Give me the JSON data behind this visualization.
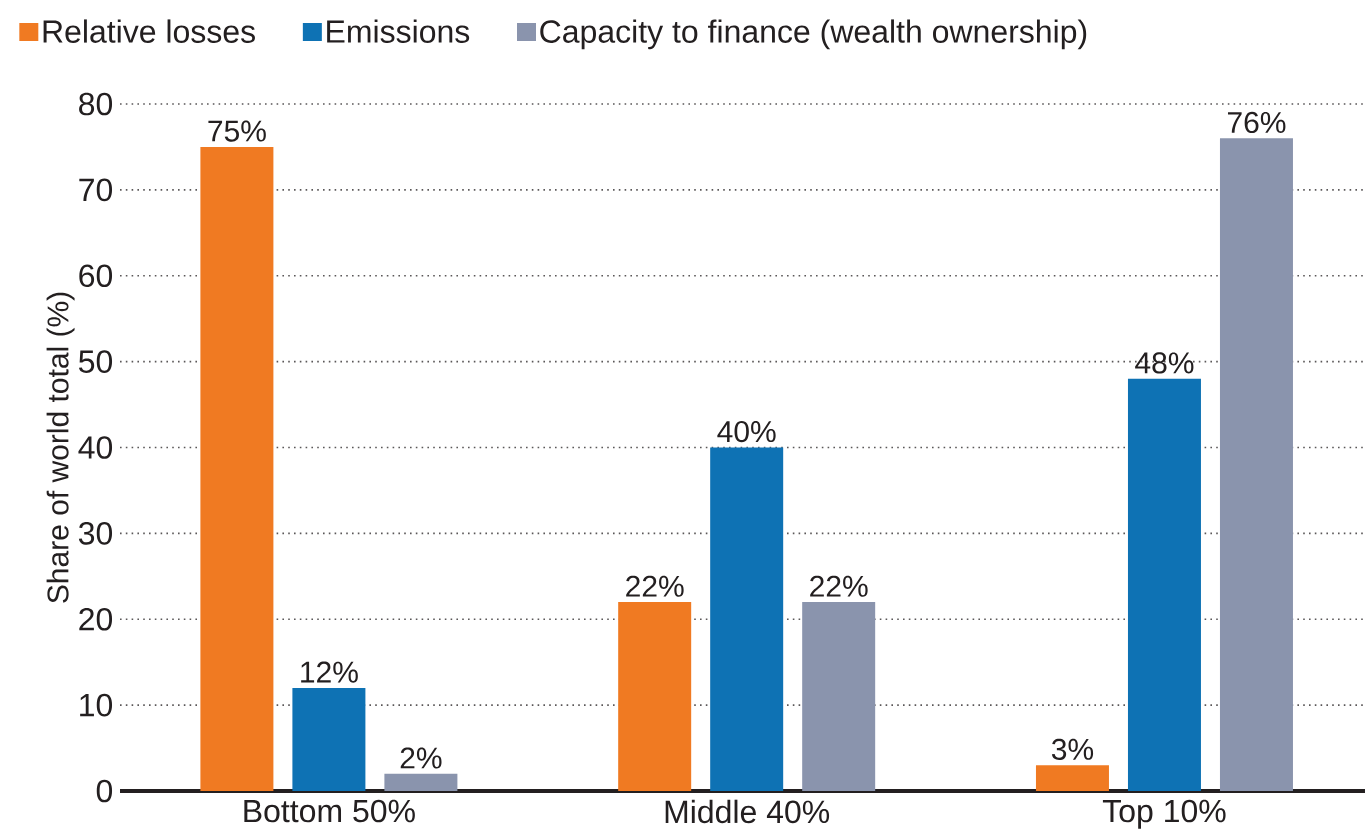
{
  "chart_data": {
    "type": "bar",
    "categories": [
      "Bottom 50%",
      "Middle 40%",
      "Top 10%"
    ],
    "series": [
      {
        "name": "Relative losses",
        "color": "#f07a22",
        "values": [
          75,
          22,
          3
        ],
        "value_labels": [
          "75%",
          "22%",
          "3%"
        ]
      },
      {
        "name": "Emissions",
        "color": "#0e72b4",
        "values": [
          12,
          40,
          48
        ],
        "value_labels": [
          "12%",
          "40%",
          "48%"
        ]
      },
      {
        "name": "Capacity to finance (wealth ownership)",
        "color": "#8a94ad",
        "values": [
          2,
          22,
          76
        ],
        "value_labels": [
          "2%",
          "22%",
          "76%"
        ]
      }
    ],
    "ylabel": "Share of world total (%)",
    "ylim": [
      0,
      80
    ],
    "yticks": [
      0,
      10,
      20,
      30,
      40,
      50,
      60,
      70,
      80
    ],
    "grid": "y",
    "legend": "top"
  }
}
